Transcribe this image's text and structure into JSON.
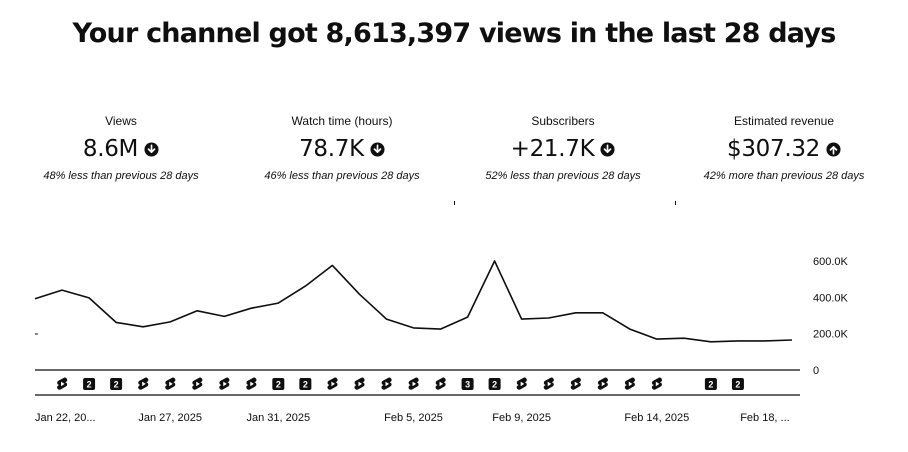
{
  "headline": "Your channel got 8,613,397 views in the last 28 days",
  "metrics": [
    {
      "label": "Views",
      "value": "8.6M",
      "direction": "down",
      "comparison": "48% less than previous 28 days"
    },
    {
      "label": "Watch time (hours)",
      "value": "78.7K",
      "direction": "down",
      "comparison": "46% less than previous 28 days"
    },
    {
      "label": "Subscribers",
      "value": "+21.7K",
      "direction": "down",
      "comparison": "52% less than previous 28 days"
    },
    {
      "label": "Estimated revenue",
      "value": "$307.32",
      "direction": "up",
      "comparison": "42% more than previous 28 days"
    }
  ],
  "icons": {
    "down": "arrow-down-circle-icon",
    "up": "arrow-up-circle-icon",
    "shorts": "shorts-icon"
  },
  "chart_data": {
    "type": "line",
    "title": "",
    "xlabel": "",
    "ylabel": "",
    "ylim": [
      0,
      600000
    ],
    "y_ticks": [
      {
        "value": 0,
        "label": "0"
      },
      {
        "value": 200000,
        "label": "200.0K"
      },
      {
        "value": 400000,
        "label": "400.0K"
      },
      {
        "value": 600000,
        "label": "600.0K"
      }
    ],
    "x": [
      "Jan 22, 2025",
      "Jan 23, 2025",
      "Jan 24, 2025",
      "Jan 25, 2025",
      "Jan 26, 2025",
      "Jan 27, 2025",
      "Jan 28, 2025",
      "Jan 29, 2025",
      "Jan 30, 2025",
      "Jan 31, 2025",
      "Feb 1, 2025",
      "Feb 2, 2025",
      "Feb 3, 2025",
      "Feb 4, 2025",
      "Feb 5, 2025",
      "Feb 6, 2025",
      "Feb 7, 2025",
      "Feb 8, 2025",
      "Feb 9, 2025",
      "Feb 10, 2025",
      "Feb 11, 2025",
      "Feb 12, 2025",
      "Feb 13, 2025",
      "Feb 14, 2025",
      "Feb 15, 2025",
      "Feb 16, 2025",
      "Feb 17, 2025",
      "Feb 18, 2025",
      "Feb 19, 2025"
    ],
    "x_tick_labels": [
      {
        "index": 0,
        "label": "Jan 22, 20..."
      },
      {
        "index": 5,
        "label": "Jan 27, 2025"
      },
      {
        "index": 9,
        "label": "Jan 31, 2025"
      },
      {
        "index": 14,
        "label": "Feb 5, 2025"
      },
      {
        "index": 18,
        "label": "Feb 9, 2025"
      },
      {
        "index": 23,
        "label": "Feb 14, 2025"
      },
      {
        "index": 27,
        "label": "Feb 18, ..."
      }
    ],
    "series": [
      {
        "values": [
          392000,
          440000,
          397000,
          262000,
          238000,
          265000,
          326000,
          295000,
          340000,
          368000,
          462000,
          576000,
          417000,
          280000,
          232000,
          225000,
          291000,
          600000,
          280000,
          286000,
          315000,
          315000,
          225000,
          170000,
          175000,
          155000,
          160000,
          160000,
          165000
        ]
      }
    ],
    "markers": [
      {
        "index": 1,
        "kind": "shorts"
      },
      {
        "index": 2,
        "kind": "count",
        "text": "2"
      },
      {
        "index": 3,
        "kind": "count",
        "text": "2"
      },
      {
        "index": 4,
        "kind": "shorts"
      },
      {
        "index": 5,
        "kind": "shorts"
      },
      {
        "index": 6,
        "kind": "shorts"
      },
      {
        "index": 7,
        "kind": "shorts"
      },
      {
        "index": 8,
        "kind": "shorts"
      },
      {
        "index": 9,
        "kind": "count",
        "text": "2"
      },
      {
        "index": 10,
        "kind": "count",
        "text": "2"
      },
      {
        "index": 11,
        "kind": "shorts"
      },
      {
        "index": 12,
        "kind": "shorts"
      },
      {
        "index": 13,
        "kind": "shorts"
      },
      {
        "index": 14,
        "kind": "shorts"
      },
      {
        "index": 15,
        "kind": "shorts"
      },
      {
        "index": 16,
        "kind": "count",
        "text": "3"
      },
      {
        "index": 17,
        "kind": "count",
        "text": "2"
      },
      {
        "index": 18,
        "kind": "shorts"
      },
      {
        "index": 19,
        "kind": "shorts"
      },
      {
        "index": 20,
        "kind": "shorts"
      },
      {
        "index": 21,
        "kind": "shorts"
      },
      {
        "index": 22,
        "kind": "shorts"
      },
      {
        "index": 23,
        "kind": "shorts"
      },
      {
        "index": 25,
        "kind": "count",
        "text": "2"
      },
      {
        "index": 26,
        "kind": "count",
        "text": "2"
      }
    ]
  }
}
